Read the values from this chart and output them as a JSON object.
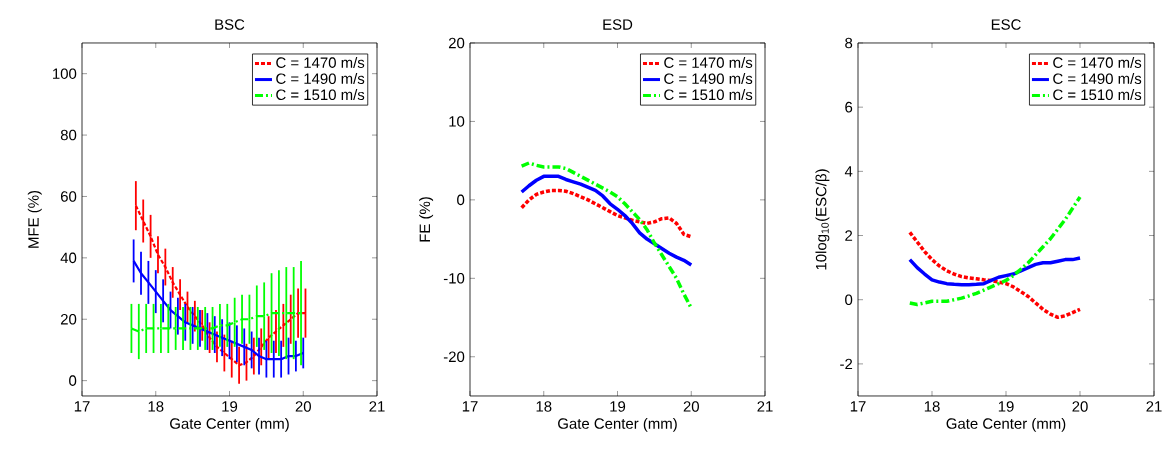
{
  "chart_data": [
    {
      "type": "line",
      "title": "BSC",
      "xlabel": "Gate Center (mm)",
      "ylabel": "MFE (%)",
      "xlim": [
        17,
        21
      ],
      "xticks": [
        17,
        18,
        19,
        20,
        21
      ],
      "ylim": [
        -5,
        110
      ],
      "yticks": [
        0,
        20,
        40,
        60,
        80,
        100
      ],
      "legend": "top right",
      "marker": "none",
      "x": [
        17.7,
        17.8,
        17.9,
        18.0,
        18.1,
        18.2,
        18.3,
        18.4,
        18.5,
        18.6,
        18.7,
        18.8,
        18.9,
        19.0,
        19.1,
        19.2,
        19.3,
        19.4,
        19.5,
        19.6,
        19.7,
        19.8,
        19.9,
        20.0
      ],
      "series": [
        {
          "name": "C = 1470 m/s",
          "color": "#ff0000",
          "line_style": "dashed",
          "x": [
            17.73,
            17.83,
            17.93,
            18.03,
            18.13,
            18.23,
            18.33,
            18.43,
            18.53,
            18.63,
            18.73,
            18.83,
            18.93,
            19.03,
            19.13,
            19.23,
            19.33,
            19.43,
            19.53,
            19.63,
            19.73,
            19.83,
            19.93,
            20.03
          ],
          "values": [
            57,
            52,
            47,
            41,
            37,
            32,
            28,
            24,
            21,
            18,
            14,
            11,
            9,
            7,
            5,
            6,
            8,
            11,
            14,
            16,
            18,
            20,
            22,
            22
          ],
          "errors": [
            8,
            7,
            7,
            6,
            6,
            5,
            5,
            5,
            5,
            5,
            5,
            5,
            6,
            6,
            6,
            6,
            6,
            6,
            7,
            7,
            7,
            8,
            8,
            8
          ]
        },
        {
          "name": "C = 1490 m/s",
          "color": "#0000ff",
          "line_style": "solid",
          "values": [
            39,
            35,
            32,
            29,
            26,
            23,
            21,
            19,
            18,
            17,
            16,
            15,
            14,
            13,
            12,
            11,
            10,
            8,
            7,
            7,
            7,
            8,
            8,
            9
          ],
          "errors": [
            7,
            7,
            7,
            7,
            7,
            6,
            6,
            6,
            6,
            6,
            6,
            6,
            6,
            6,
            6,
            6,
            6,
            6,
            6,
            6,
            6,
            6,
            5,
            5
          ]
        },
        {
          "name": "C = 1510 m/s",
          "color": "#00ff00",
          "line_style": "dashdot",
          "x": [
            17.67,
            17.77,
            17.87,
            17.97,
            18.07,
            18.17,
            18.27,
            18.37,
            18.47,
            18.57,
            18.67,
            18.77,
            18.87,
            18.97,
            19.07,
            19.17,
            19.27,
            19.37,
            19.47,
            19.57,
            19.67,
            19.77,
            19.87,
            19.97
          ],
          "values": [
            17,
            16,
            17,
            17,
            17,
            17,
            17,
            17,
            17,
            17,
            17,
            17,
            18,
            18,
            19,
            20,
            20,
            21,
            21,
            22,
            22,
            22,
            22,
            22
          ],
          "errors": [
            8,
            9,
            8,
            8,
            8,
            8,
            7,
            7,
            7,
            7,
            7,
            7,
            7,
            7,
            8,
            8,
            8,
            10,
            11,
            13,
            14,
            15,
            15,
            17
          ]
        }
      ]
    },
    {
      "type": "line",
      "title": "ESD",
      "xlabel": "Gate Center (mm)",
      "ylabel": "FE (%)",
      "xlim": [
        17,
        21
      ],
      "xticks": [
        17,
        18,
        19,
        20,
        21
      ],
      "ylim": [
        -25,
        20
      ],
      "yticks": [
        -20,
        -10,
        0,
        10,
        20
      ],
      "legend": "top right",
      "marker": "none",
      "x": [
        17.7,
        17.8,
        17.9,
        18.0,
        18.1,
        18.2,
        18.3,
        18.4,
        18.5,
        18.6,
        18.7,
        18.8,
        18.9,
        19.0,
        19.1,
        19.2,
        19.3,
        19.4,
        19.5,
        19.6,
        19.7,
        19.8,
        19.9,
        20.0
      ],
      "series": [
        {
          "name": "C = 1470 m/s",
          "color": "#ff0000",
          "line_style": "dashed",
          "values": [
            -1,
            0,
            0.7,
            1,
            1.2,
            1.2,
            1.1,
            0.8,
            0.4,
            0,
            -0.5,
            -1,
            -1.5,
            -2,
            -2.3,
            -2.6,
            -2.8,
            -3,
            -2.8,
            -2.4,
            -2.3,
            -3,
            -4.4,
            -4.7
          ]
        },
        {
          "name": "C = 1490 m/s",
          "color": "#0000ff",
          "line_style": "solid",
          "values": [
            1,
            1.8,
            2.5,
            3,
            3,
            3,
            2.6,
            2.3,
            2,
            1.6,
            1.2,
            0.5,
            -0.5,
            -1.2,
            -2,
            -3,
            -4.2,
            -5,
            -5.6,
            -6.2,
            -6.8,
            -7.3,
            -7.7,
            -8.3
          ]
        },
        {
          "name": "C = 1510 m/s",
          "color": "#00ff00",
          "line_style": "dashdot",
          "values": [
            4.3,
            4.7,
            4.4,
            4.2,
            4.2,
            4.2,
            4,
            3.5,
            3,
            2.5,
            2,
            1.5,
            1,
            0.4,
            -0.5,
            -1.5,
            -2.5,
            -3.8,
            -5.5,
            -7,
            -8.5,
            -10,
            -12,
            -13.8
          ]
        }
      ]
    },
    {
      "type": "line",
      "title": "ESC",
      "xlabel": "Gate Center (mm)",
      "ylabel": "10log$_{10}$(ESC/β)",
      "xlim": [
        17,
        21
      ],
      "xticks": [
        17,
        18,
        19,
        20,
        21
      ],
      "ylim": [
        -3,
        8
      ],
      "yticks": [
        -2,
        0,
        2,
        4,
        6,
        8
      ],
      "legend": "top right",
      "marker": "none",
      "x": [
        17.7,
        17.8,
        17.9,
        18.0,
        18.1,
        18.2,
        18.3,
        18.4,
        18.5,
        18.6,
        18.7,
        18.8,
        18.9,
        19.0,
        19.1,
        19.2,
        19.3,
        19.4,
        19.5,
        19.6,
        19.7,
        19.8,
        19.9,
        20.0
      ],
      "series": [
        {
          "name": "C = 1470 m/s",
          "color": "#ff0000",
          "line_style": "dashed",
          "values": [
            2.1,
            1.8,
            1.5,
            1.25,
            1.05,
            0.9,
            0.8,
            0.72,
            0.68,
            0.65,
            0.62,
            0.6,
            0.55,
            0.5,
            0.4,
            0.25,
            0.1,
            -0.1,
            -0.3,
            -0.45,
            -0.55,
            -0.5,
            -0.4,
            -0.3
          ]
        },
        {
          "name": "C = 1490 m/s",
          "color": "#0000ff",
          "line_style": "solid",
          "values": [
            1.25,
            1.0,
            0.8,
            0.62,
            0.55,
            0.5,
            0.48,
            0.47,
            0.47,
            0.48,
            0.5,
            0.6,
            0.7,
            0.75,
            0.8,
            0.9,
            1.0,
            1.1,
            1.15,
            1.15,
            1.2,
            1.25,
            1.25,
            1.3
          ]
        },
        {
          "name": "C = 1510 m/s",
          "color": "#00ff00",
          "line_style": "dashdot",
          "values": [
            -0.1,
            -0.15,
            -0.1,
            -0.05,
            -0.05,
            -0.05,
            0,
            0.05,
            0.12,
            0.2,
            0.3,
            0.4,
            0.5,
            0.6,
            0.75,
            0.95,
            1.15,
            1.4,
            1.65,
            1.9,
            2.2,
            2.5,
            2.85,
            3.2
          ]
        }
      ]
    }
  ]
}
